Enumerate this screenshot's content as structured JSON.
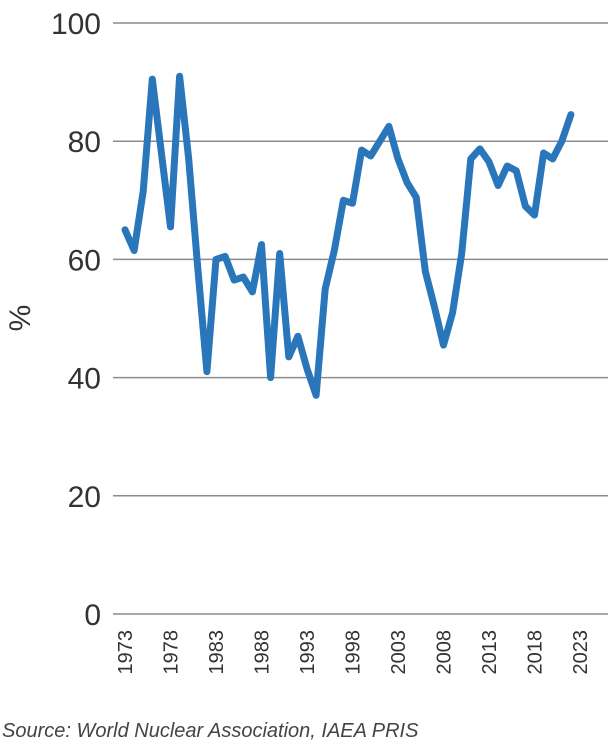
{
  "chart_data": {
    "type": "line",
    "ylabel": "%",
    "ylim": [
      0,
      100
    ],
    "yticks": [
      0,
      20,
      40,
      60,
      80,
      100
    ],
    "xlim": [
      1973,
      2023
    ],
    "xticks": [
      1973,
      1978,
      1983,
      1988,
      1993,
      1998,
      2003,
      2008,
      2013,
      2018,
      2023
    ],
    "grid": "horizontal",
    "line_color": "#2a76bb",
    "series": [
      {
        "x": [
          1973,
          1974,
          1975,
          1976,
          1977,
          1978,
          1979,
          1980,
          1981,
          1982,
          1983,
          1984,
          1985,
          1986,
          1987,
          1988,
          1989,
          1990,
          1991,
          1992,
          1993,
          1994,
          1995,
          1996,
          1997,
          1998,
          1999,
          2000,
          2001,
          2002,
          2003,
          2004,
          2005,
          2006,
          2007,
          2008,
          2009,
          2010,
          2011,
          2012,
          2013,
          2014,
          2015,
          2016,
          2017,
          2018,
          2019,
          2020,
          2021,
          2022
        ],
        "values": [
          65,
          61.5,
          71.5,
          90.5,
          78,
          65.5,
          91,
          77,
          58.5,
          41,
          60,
          60.5,
          56.5,
          57,
          54.5,
          62.5,
          40,
          61,
          43.5,
          47,
          41.5,
          37,
          55,
          61.5,
          70,
          69.5,
          78.5,
          77.5,
          80,
          82.5,
          77,
          73,
          70.5,
          58,
          52,
          45.5,
          51,
          61,
          77,
          78.7,
          76.5,
          72.5,
          75.8,
          75,
          69,
          67.5,
          78,
          77,
          80,
          84.5
        ]
      }
    ]
  },
  "source": "Source: World Nuclear Association, IAEA PRIS"
}
